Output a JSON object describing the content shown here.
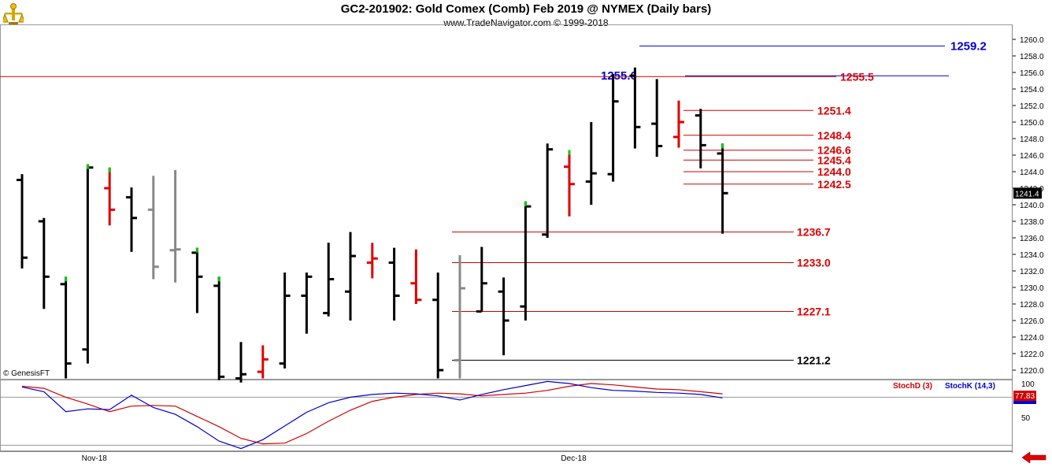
{
  "header": {
    "title": "GC2-201902:  Gold Comex (Comb) Feb 2019 @ NYMEX  (Daily bars)",
    "subtitle": "www.TradeNavigator.com © 1999-2018",
    "copyright": "© GenesisFT",
    "logo_icon": "trade-navigator-logo-icon",
    "nav_icon": "red-left-arrow-icon"
  },
  "colors": {
    "up_bar": "#000000",
    "down_bar": "#e00000",
    "neutral_bar": "#888888",
    "close_marker_up": "#00cc00",
    "level_line": "#cc0000",
    "level_text": "#e00000",
    "blue_level": "#0000cc",
    "stochD": "#d00000",
    "stochK": "#0000cc",
    "last_price_bg": "#000000",
    "stoch_value_bg": "#d00000"
  },
  "chart_data": {
    "type": "ohlc",
    "price_axis": {
      "min": 1219,
      "max": 1261,
      "tick_step": 2,
      "ticks": [
        "1260.0",
        "1258.0",
        "1256.0",
        "1254.0",
        "1252.0",
        "1250.0",
        "1248.0",
        "1246.0",
        "1244.0",
        "1242.0",
        "1240.0",
        "1238.0",
        "1236.0",
        "1234.0",
        "1232.0",
        "1230.0",
        "1228.0",
        "1226.0",
        "1224.0",
        "1222.0",
        "1220.0"
      ],
      "last_price_label": "1241.4"
    },
    "x_labels": [
      {
        "label": "Nov-18",
        "bar_index": 3.3
      },
      {
        "label": "Dec-18",
        "bar_index": 25.2
      }
    ],
    "bars": [
      {
        "h": 1243.7,
        "l": 1232.3,
        "o": 1243.0,
        "c": 1233.6,
        "color": "black"
      },
      {
        "h": 1238.4,
        "l": 1227.4,
        "o": 1238.0,
        "c": 1231.3,
        "color": "black"
      },
      {
        "h": 1231.3,
        "l": 1219.0,
        "o": 1230.4,
        "c": 1220.8,
        "color": "black"
      },
      {
        "h": 1244.9,
        "l": 1220.8,
        "o": 1222.5,
        "c": 1244.5,
        "color": "black"
      },
      {
        "h": 1244.5,
        "l": 1237.5,
        "o": 1242.0,
        "c": 1239.4,
        "color": "red"
      },
      {
        "h": 1242.1,
        "l": 1234.3,
        "o": 1240.9,
        "c": 1238.4,
        "color": "black"
      },
      {
        "h": 1243.5,
        "l": 1231.0,
        "o": 1239.4,
        "c": 1232.5,
        "color": "gray"
      },
      {
        "h": 1244.2,
        "l": 1230.6,
        "o": 1234.5,
        "c": 1234.6,
        "color": "gray"
      },
      {
        "h": 1234.8,
        "l": 1226.9,
        "o": 1234.2,
        "c": 1231.3,
        "color": "black"
      },
      {
        "h": 1231.3,
        "l": 1218.8,
        "o": 1230.2,
        "c": 1219.2,
        "color": "black"
      },
      {
        "h": 1223.4,
        "l": 1218.5,
        "o": 1219.0,
        "c": 1219.5,
        "color": "black"
      },
      {
        "h": 1223.0,
        "l": 1219.0,
        "o": 1219.8,
        "c": 1221.3,
        "color": "red"
      },
      {
        "h": 1231.8,
        "l": 1220.2,
        "o": 1220.8,
        "c": 1229.0,
        "color": "black"
      },
      {
        "h": 1231.8,
        "l": 1224.4,
        "o": 1229.0,
        "c": 1231.3,
        "color": "black"
      },
      {
        "h": 1235.4,
        "l": 1226.5,
        "o": 1226.9,
        "c": 1231.0,
        "color": "black"
      },
      {
        "h": 1236.7,
        "l": 1226.0,
        "o": 1229.5,
        "c": 1233.8,
        "color": "black"
      },
      {
        "h": 1235.4,
        "l": 1231.1,
        "o": 1233.0,
        "c": 1233.5,
        "color": "red"
      },
      {
        "h": 1234.8,
        "l": 1226.0,
        "o": 1233.0,
        "c": 1229.0,
        "color": "black"
      },
      {
        "h": 1234.6,
        "l": 1228.0,
        "o": 1230.5,
        "c": 1228.5,
        "color": "red"
      },
      {
        "h": 1231.8,
        "l": 1219.0,
        "o": 1228.5,
        "c": 1220.0,
        "color": "black"
      },
      {
        "h": 1233.9,
        "l": 1219.0,
        "o": 1221.2,
        "c": 1229.9,
        "color": "gray"
      },
      {
        "h": 1234.9,
        "l": 1227.1,
        "o": 1227.1,
        "c": 1230.5,
        "color": "black"
      },
      {
        "h": 1231.2,
        "l": 1221.8,
        "o": 1229.5,
        "c": 1226.0,
        "color": "black"
      },
      {
        "h": 1240.4,
        "l": 1226.0,
        "o": 1227.7,
        "c": 1239.8,
        "color": "black"
      },
      {
        "h": 1247.4,
        "l": 1236.0,
        "o": 1236.4,
        "c": 1246.7,
        "color": "black"
      },
      {
        "h": 1246.6,
        "l": 1238.6,
        "o": 1244.6,
        "c": 1242.5,
        "color": "red"
      },
      {
        "h": 1250.0,
        "l": 1240.0,
        "o": 1242.8,
        "c": 1243.8,
        "color": "black"
      },
      {
        "h": 1255.8,
        "l": 1242.8,
        "o": 1243.7,
        "c": 1252.5,
        "color": "black"
      },
      {
        "h": 1256.6,
        "l": 1246.8,
        "o": 1255.6,
        "c": 1249.4,
        "color": "black"
      },
      {
        "h": 1255.2,
        "l": 1245.8,
        "o": 1249.8,
        "c": 1247.1,
        "color": "black"
      },
      {
        "h": 1252.6,
        "l": 1246.9,
        "o": 1248.2,
        "c": 1250.0,
        "color": "red"
      },
      {
        "h": 1251.6,
        "l": 1244.4,
        "o": 1250.8,
        "c": 1247.2,
        "color": "black"
      },
      {
        "h": 1247.4,
        "l": 1236.5,
        "o": 1246.2,
        "c": 1241.4,
        "color": "black"
      }
    ],
    "close_markers_green": [
      2,
      3,
      4,
      8,
      9,
      23,
      25,
      32
    ],
    "levels": [
      {
        "value": 1259.2,
        "label": "1259.2",
        "style": "blue",
        "from_bar": 25.3
      },
      {
        "value": 1255.6,
        "label": "1255.6",
        "style": "blue-left",
        "from_bar": 27.5
      },
      {
        "value": 1255.5,
        "label": "1255.5",
        "style": "red-full",
        "from_bar": -1.0
      },
      {
        "value": 1251.4,
        "label": "1251.4",
        "style": "red",
        "from_bar": 28.0
      },
      {
        "value": 1248.4,
        "label": "1248.4",
        "style": "red",
        "from_bar": 28.0
      },
      {
        "value": 1246.6,
        "label": "1246.6",
        "style": "red",
        "from_bar": 28.0
      },
      {
        "value": 1245.4,
        "label": "1245.4",
        "style": "red",
        "from_bar": 28.0
      },
      {
        "value": 1244.0,
        "label": "1244.0",
        "style": "red",
        "from_bar": 28.0
      },
      {
        "value": 1242.5,
        "label": "1242.5",
        "style": "red",
        "from_bar": 28.0
      },
      {
        "value": 1236.7,
        "label": "1236.7",
        "style": "red",
        "from_bar": 20.0
      },
      {
        "value": 1233.0,
        "label": "1233.0",
        "style": "red",
        "from_bar": 20.0
      },
      {
        "value": 1227.1,
        "label": "1227.1",
        "style": "red",
        "from_bar": 20.0
      },
      {
        "value": 1221.2,
        "label": "1221.2",
        "style": "black",
        "from_bar": 20.0
      }
    ],
    "stochastic": {
      "labels": {
        "d": "StochD (3)",
        "k": "StochK (14,3)"
      },
      "axis_ticks": [
        "100",
        "50"
      ],
      "value_label": "77.83",
      "ylim": [
        0,
        100
      ],
      "d_values": [
        96,
        93,
        80,
        70,
        59,
        67,
        68,
        67,
        52,
        37,
        20,
        12,
        13,
        27,
        45,
        61,
        74,
        80,
        84,
        86,
        85,
        82,
        84,
        86,
        90,
        96,
        100,
        98,
        95,
        92,
        91,
        88,
        85
      ],
      "k_values": [
        95,
        88,
        59,
        63,
        62,
        83,
        65,
        55,
        37,
        16,
        5,
        18,
        38,
        58,
        72,
        80,
        84,
        86,
        85,
        82,
        76,
        84,
        91,
        97,
        103,
        100,
        94,
        90,
        89,
        87,
        86,
        84,
        79
      ]
    }
  }
}
